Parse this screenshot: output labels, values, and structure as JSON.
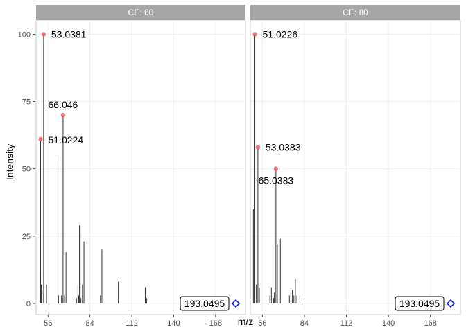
{
  "chart_data": {
    "type": "bar",
    "title": "",
    "xlabel": "m/z",
    "ylabel": "Intensity",
    "xlim": [
      48,
      188
    ],
    "ylim": [
      0,
      105
    ],
    "x_ticks": [
      56,
      84,
      112,
      140,
      168
    ],
    "y_ticks": [
      0,
      25,
      50,
      75,
      100
    ],
    "grid": true,
    "colors": {
      "bar": "#333333",
      "highlight_point": "#f25b5b",
      "precursor_marker": "#0000ff",
      "strip_bg": "#a6a6a6",
      "strip_text": "#ffffff",
      "panel_border": "#c8c8c8",
      "grid": "#ebebeb"
    },
    "facets": [
      {
        "label": "CE: 60",
        "peaks": [
          {
            "mz": 51.0,
            "intensity": 10
          },
          {
            "mz": 51.0224,
            "intensity": 61
          },
          {
            "mz": 51.5,
            "intensity": 7
          },
          {
            "mz": 52.0,
            "intensity": 5
          },
          {
            "mz": 53.0381,
            "intensity": 100
          },
          {
            "mz": 55.0,
            "intensity": 7
          },
          {
            "mz": 63.0,
            "intensity": 3
          },
          {
            "mz": 64.0,
            "intensity": 55
          },
          {
            "mz": 65.0,
            "intensity": 3
          },
          {
            "mz": 65.5,
            "intensity": 2
          },
          {
            "mz": 66.046,
            "intensity": 70
          },
          {
            "mz": 67.0,
            "intensity": 3
          },
          {
            "mz": 68.0,
            "intensity": 19
          },
          {
            "mz": 75.0,
            "intensity": 2
          },
          {
            "mz": 76.0,
            "intensity": 7
          },
          {
            "mz": 76.5,
            "intensity": 3
          },
          {
            "mz": 77.0,
            "intensity": 29
          },
          {
            "mz": 77.5,
            "intensity": 29
          },
          {
            "mz": 78.0,
            "intensity": 2
          },
          {
            "mz": 79.0,
            "intensity": 7
          },
          {
            "mz": 80.0,
            "intensity": 23
          },
          {
            "mz": 91.0,
            "intensity": 3
          },
          {
            "mz": 92.0,
            "intensity": 20
          },
          {
            "mz": 103.0,
            "intensity": 8
          },
          {
            "mz": 121.0,
            "intensity": 6
          },
          {
            "mz": 122.0,
            "intensity": 2
          }
        ],
        "highlighted": [
          {
            "mz": 53.0381,
            "intensity": 100,
            "label": "53.0381"
          },
          {
            "mz": 66.046,
            "intensity": 70,
            "label": "66.046"
          },
          {
            "mz": 51.0224,
            "intensity": 61,
            "label": "51.0224"
          }
        ],
        "precursor": {
          "mz": 193.0495,
          "intensity": 0,
          "label": "193.0495"
        }
      },
      {
        "label": "CE: 80",
        "peaks": [
          {
            "mz": 50.0,
            "intensity": 35
          },
          {
            "mz": 51.0226,
            "intensity": 100
          },
          {
            "mz": 52.0,
            "intensity": 7
          },
          {
            "mz": 53.0383,
            "intensity": 58
          },
          {
            "mz": 54.0,
            "intensity": 6
          },
          {
            "mz": 61.0,
            "intensity": 3
          },
          {
            "mz": 62.0,
            "intensity": 6
          },
          {
            "mz": 63.0,
            "intensity": 3
          },
          {
            "mz": 63.5,
            "intensity": 2
          },
          {
            "mz": 64.0,
            "intensity": 4
          },
          {
            "mz": 65.0383,
            "intensity": 50
          },
          {
            "mz": 66.0,
            "intensity": 22
          },
          {
            "mz": 68.0,
            "intensity": 24
          },
          {
            "mz": 74.0,
            "intensity": 3
          },
          {
            "mz": 75.0,
            "intensity": 5
          },
          {
            "mz": 76.0,
            "intensity": 5
          },
          {
            "mz": 77.0,
            "intensity": 3
          },
          {
            "mz": 78.0,
            "intensity": 9
          },
          {
            "mz": 79.0,
            "intensity": 3
          },
          {
            "mz": 81.0,
            "intensity": 3
          }
        ],
        "highlighted": [
          {
            "mz": 51.0226,
            "intensity": 100,
            "label": "51.0226"
          },
          {
            "mz": 53.0383,
            "intensity": 58,
            "label": "53.0383"
          },
          {
            "mz": 65.0383,
            "intensity": 50,
            "label": "65.0383"
          }
        ],
        "precursor": {
          "mz": 193.0495,
          "intensity": 0,
          "label": "193.0495"
        }
      }
    ]
  }
}
